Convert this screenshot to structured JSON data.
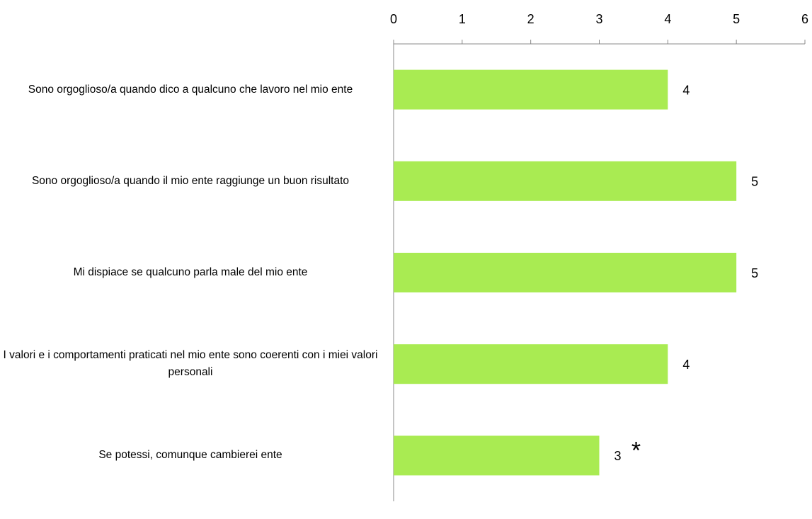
{
  "chart_data": {
    "type": "bar",
    "orientation": "horizontal",
    "categories": [
      "Sono orgoglioso/a quando dico a qualcuno che lavoro nel mio ente",
      "Sono orgoglioso/a quando il mio ente raggiunge un buon risultato",
      "Mi dispiace se qualcuno parla male del mio ente",
      "I valori e i comportamenti praticati nel mio ente sono coerenti con i miei valori personali",
      "Se potessi, comunque cambierei ente"
    ],
    "values": [
      4,
      5,
      5,
      4,
      3
    ],
    "color": "#a9eb52",
    "xlim": [
      0,
      6
    ],
    "xticks": [
      0,
      1,
      2,
      3,
      4,
      5,
      6
    ],
    "annotations": [
      {
        "text": "*",
        "category": 4,
        "color": "#ff0000"
      }
    ]
  }
}
